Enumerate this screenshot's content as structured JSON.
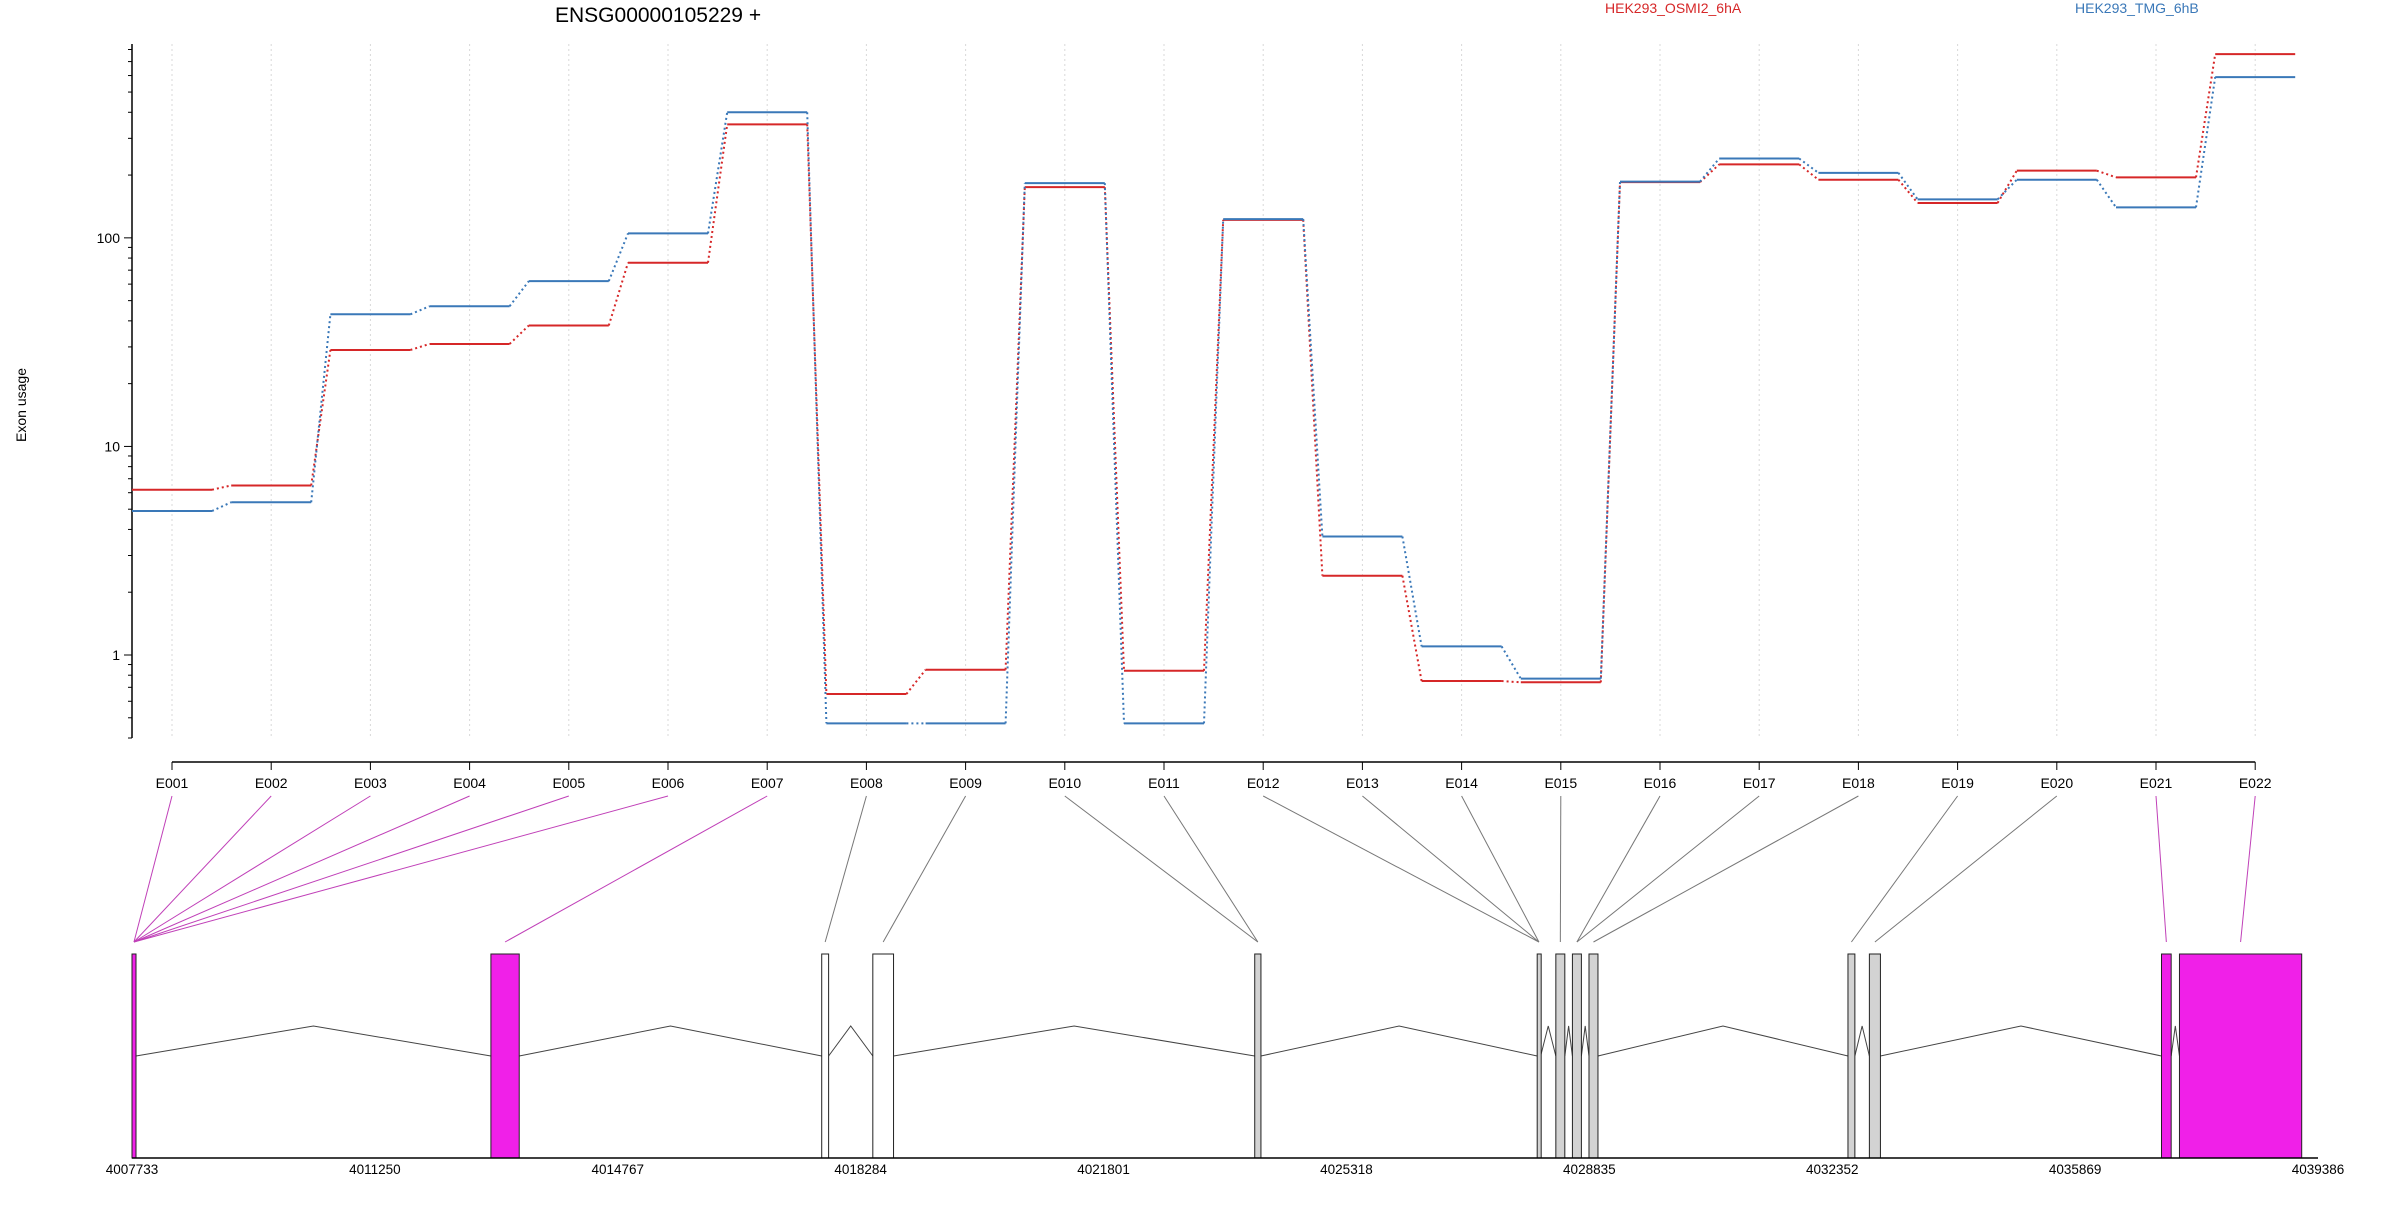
{
  "chart_data": {
    "type": "line",
    "title": "ENSG00000105229 +",
    "xlabel": "",
    "ylabel": "Exon usage",
    "y_scale": "log",
    "ylim": [
      0.4,
      850
    ],
    "y_ticks": [
      1,
      10,
      100
    ],
    "y_tick_labels": [
      "1",
      "10",
      "100"
    ],
    "grid": "vertical dotted at each exon",
    "legend_position": "top",
    "categories": [
      "E001",
      "E002",
      "E003",
      "E004",
      "E005",
      "E006",
      "E007",
      "E008",
      "E009",
      "E010",
      "E011",
      "E012",
      "E013",
      "E014",
      "E015",
      "E016",
      "E017",
      "E018",
      "E019",
      "E020",
      "E021",
      "E022"
    ],
    "series": [
      {
        "name": "HEK293_OSMI2_6hA",
        "color": "#d62728",
        "values": [
          6.2,
          6.5,
          29,
          31,
          38,
          76,
          350,
          0.65,
          0.85,
          175,
          0.84,
          122,
          2.4,
          0.75,
          0.74,
          185,
          225,
          190,
          147,
          210,
          195,
          760
        ]
      },
      {
        "name": "HEK293_TMG_6hB",
        "color": "#3a78b8",
        "values": [
          4.9,
          5.4,
          43,
          47,
          62,
          105,
          400,
          0.47,
          0.47,
          183,
          0.47,
          123,
          3.7,
          1.1,
          0.77,
          186,
          240,
          205,
          153,
          190,
          140,
          590
        ]
      }
    ],
    "gene_model": {
      "axis_ticks": [
        4007733,
        4011250,
        4014767,
        4018284,
        4021801,
        4025318,
        4028835,
        4032352,
        4035869,
        4039386
      ],
      "xlim": [
        4007733,
        4039386
      ],
      "highlight_color": "#f020e8",
      "exons": [
        {
          "id": "E001",
          "start": 4007733,
          "end": 4007790,
          "highlight": true
        },
        {
          "id": "E002",
          "start": 4007733,
          "end": 4007790,
          "highlight": true
        },
        {
          "id": "E003",
          "start": 4007733,
          "end": 4007790,
          "highlight": true
        },
        {
          "id": "E004",
          "start": 4007733,
          "end": 4007790,
          "highlight": true
        },
        {
          "id": "E005",
          "start": 4007733,
          "end": 4007790,
          "highlight": true
        },
        {
          "id": "E006",
          "start": 4007733,
          "end": 4007790,
          "highlight": true
        },
        {
          "id": "E007",
          "start": 4012930,
          "end": 4013340,
          "highlight": true
        },
        {
          "id": "E008",
          "start": 4017720,
          "end": 4017820,
          "highlight": false
        },
        {
          "id": "E009",
          "start": 4018460,
          "end": 4018760,
          "highlight": false
        },
        {
          "id": "E010",
          "start": 4023990,
          "end": 4024080,
          "highlight": false
        },
        {
          "id": "E011",
          "start": 4023990,
          "end": 4024080,
          "highlight": false
        },
        {
          "id": "E012",
          "start": 4028080,
          "end": 4028130,
          "highlight": false
        },
        {
          "id": "E013",
          "start": 4028080,
          "end": 4028130,
          "highlight": false
        },
        {
          "id": "E014",
          "start": 4028080,
          "end": 4028130,
          "highlight": false
        },
        {
          "id": "E015",
          "start": 4028350,
          "end": 4028480,
          "highlight": false
        },
        {
          "id": "E016",
          "start": 4028590,
          "end": 4028720,
          "highlight": false
        },
        {
          "id": "E017",
          "start": 4028590,
          "end": 4028720,
          "highlight": false
        },
        {
          "id": "E018",
          "start": 4028830,
          "end": 4028960,
          "highlight": false
        },
        {
          "id": "E019",
          "start": 4032580,
          "end": 4032680,
          "highlight": false
        },
        {
          "id": "E020",
          "start": 4032890,
          "end": 4033050,
          "highlight": false
        },
        {
          "id": "E021",
          "start": 4037120,
          "end": 4037260,
          "highlight": true
        },
        {
          "id": "E022",
          "start": 4037380,
          "end": 4039150,
          "highlight": true
        }
      ],
      "introns": [
        [
          4007790,
          4012930
        ],
        [
          4013340,
          4017720
        ],
        [
          4017820,
          4018460
        ],
        [
          4018760,
          4023990
        ],
        [
          4024080,
          4028080
        ],
        [
          4028130,
          4028350
        ],
        [
          4028480,
          4028590
        ],
        [
          4028720,
          4028830
        ],
        [
          4028960,
          4032580
        ],
        [
          4032680,
          4032890
        ],
        [
          4033050,
          4037120
        ],
        [
          4037260,
          4037380
        ]
      ]
    }
  }
}
